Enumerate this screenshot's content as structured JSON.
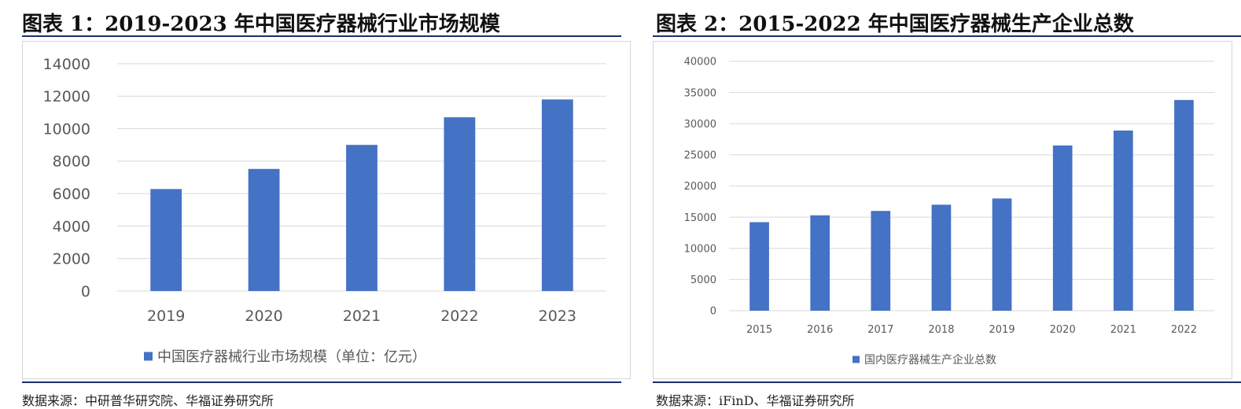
{
  "colors": {
    "bar": "#4472C4",
    "grid": "#d9d9d9",
    "rule": "#1c2f6b",
    "text": "#595959"
  },
  "charts": [
    {
      "title": "图表 1：2019-2023 年中国医疗器械行业市场规模",
      "source": "数据来源：中研普华研究院、华福证券研究所",
      "chart_data": {
        "type": "bar",
        "categories": [
          "2019",
          "2020",
          "2021",
          "2022",
          "2023"
        ],
        "series": [
          {
            "name": "中国医疗器械行业市场规模（单位：亿元）",
            "values": [
              6280,
              7520,
              9000,
              10700,
              11800
            ]
          }
        ],
        "ylim": [
          0,
          14000
        ],
        "yticks": [
          0,
          2000,
          4000,
          6000,
          8000,
          10000,
          12000,
          14000
        ],
        "grid": true,
        "legend": "bottom"
      }
    },
    {
      "title": "图表 2：2015-2022 年中国医疗器械生产企业总数",
      "source": "数据来源：iFinD、华福证券研究所",
      "chart_data": {
        "type": "bar",
        "categories": [
          "2015",
          "2016",
          "2017",
          "2018",
          "2019",
          "2020",
          "2021",
          "2022"
        ],
        "series": [
          {
            "name": "国内医疗器械生产企业总数",
            "values": [
              14200,
              15300,
              16000,
              17000,
              18000,
              26500,
              28900,
              33800
            ]
          }
        ],
        "ylim": [
          0,
          40000
        ],
        "yticks": [
          0,
          5000,
          10000,
          15000,
          20000,
          25000,
          30000,
          35000,
          40000
        ],
        "grid": true,
        "legend": "bottom"
      }
    }
  ]
}
